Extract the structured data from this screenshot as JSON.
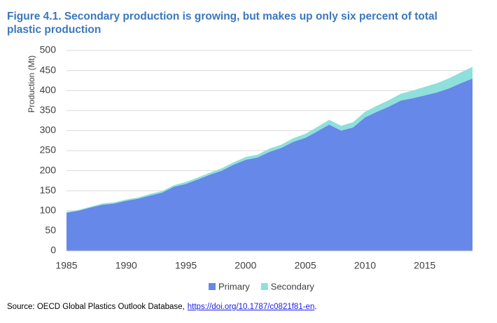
{
  "chart_data": {
    "type": "stacked-area",
    "title": "Figure 4.1. Secondary production is growing, but makes up only six percent of total plastic production",
    "y_label": "Production (Mt)",
    "x": [
      1985,
      1986,
      1987,
      1988,
      1989,
      1990,
      1991,
      1992,
      1993,
      1994,
      1995,
      1996,
      1997,
      1998,
      1999,
      2000,
      2001,
      2002,
      2003,
      2004,
      2005,
      2006,
      2007,
      2008,
      2009,
      2010,
      2011,
      2012,
      2013,
      2014,
      2015,
      2016,
      2017,
      2018,
      2019
    ],
    "series": [
      {
        "name": "Primary",
        "color": "#6688e8",
        "values": [
          95,
          100,
          108,
          115,
          118,
          125,
          130,
          138,
          145,
          160,
          167,
          178,
          190,
          200,
          215,
          227,
          233,
          247,
          257,
          272,
          282,
          298,
          315,
          300,
          308,
          333,
          347,
          360,
          375,
          381,
          388,
          395,
          405,
          418,
          430
        ]
      },
      {
        "name": "Secondary",
        "color": "#8ee0da",
        "values": [
          2,
          2,
          2,
          3,
          3,
          3,
          3,
          4,
          4,
          4,
          5,
          5,
          5,
          6,
          6,
          7,
          7,
          8,
          8,
          9,
          10,
          11,
          12,
          12,
          13,
          14,
          15,
          16,
          17,
          19,
          21,
          23,
          25,
          27,
          29
        ]
      }
    ],
    "xlim": [
      1985,
      2019
    ],
    "xticks": [
      1985,
      1990,
      1995,
      2000,
      2005,
      2010,
      2015
    ],
    "ylim": [
      0,
      500
    ],
    "yticks": [
      0,
      50,
      100,
      150,
      200,
      250,
      300,
      350,
      400,
      450,
      500
    ],
    "grid": true,
    "legend": "bottom",
    "source": "Source: OECD Global Plastics Outlook Database,",
    "source_link": "https://doi.org/10.1787/c0821f81-en",
    "source_end": "."
  }
}
